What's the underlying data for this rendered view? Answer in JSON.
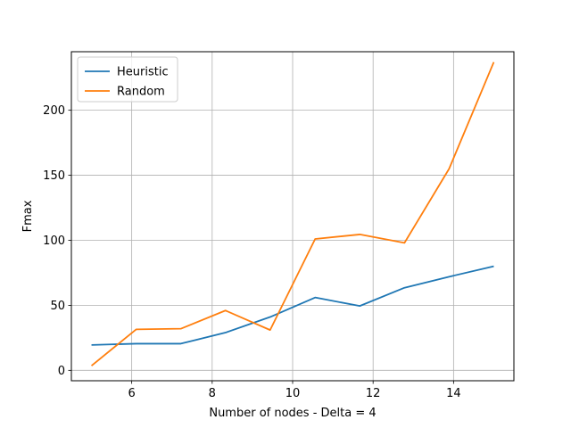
{
  "chart_data": {
    "type": "line",
    "title": "",
    "xlabel": "Number of nodes - Delta = 4",
    "ylabel": "Fmax",
    "xlim": [
      4.5,
      15.5
    ],
    "ylim": [
      -8,
      245
    ],
    "xticks": [
      6,
      8,
      10,
      12,
      14
    ],
    "yticks": [
      0,
      50,
      100,
      150,
      200
    ],
    "grid": true,
    "legend": "upper-left",
    "x": [
      5,
      6.11,
      7.22,
      8.33,
      9.44,
      10.56,
      11.67,
      12.78,
      13.89,
      15
    ],
    "series": [
      {
        "name": "Heuristic",
        "color": "#1f77b4",
        "values": [
          19.5,
          20.5,
          20.5,
          29,
          41,
          56,
          49.5,
          63.5,
          72,
          80
        ]
      },
      {
        "name": "Random",
        "color": "#ff7f0e",
        "values": [
          3.5,
          31.5,
          32,
          46,
          31,
          101,
          104.5,
          98,
          155,
          237
        ]
      }
    ]
  }
}
